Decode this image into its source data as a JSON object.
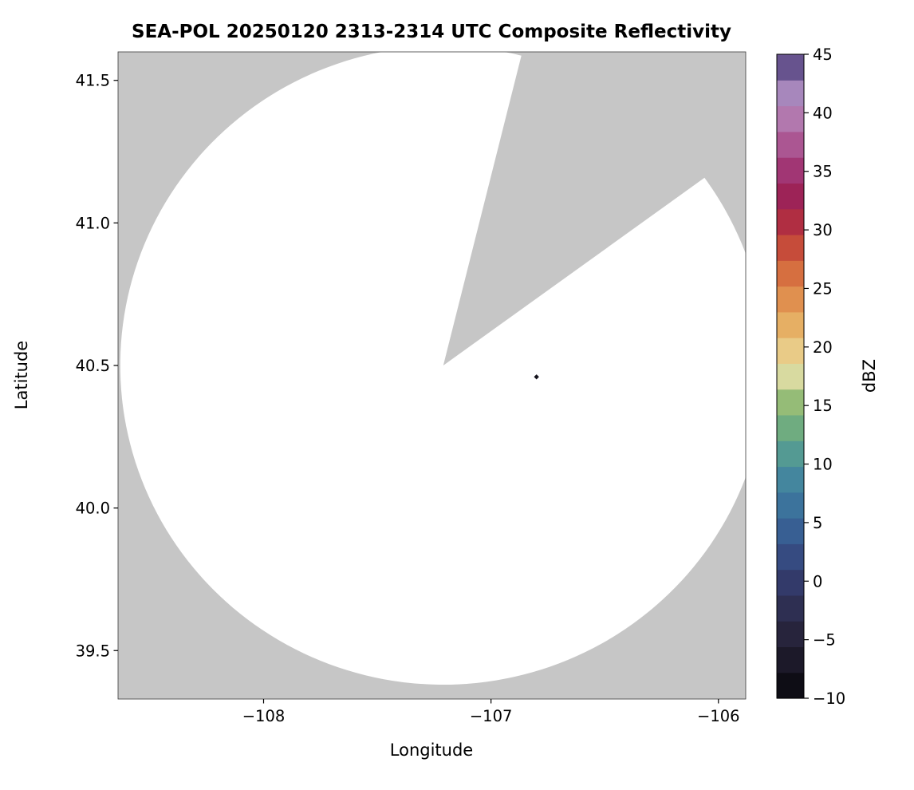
{
  "figure": {
    "background_color": "#ffffff"
  },
  "chart_data": {
    "type": "radar_ppi_composite",
    "title": "SEA-POL 20250120 2313-2314 UTC Composite Reflectivity",
    "xlabel": "Longitude",
    "ylabel": "Latitude",
    "xlim": [
      -108.64,
      -105.88
    ],
    "ylim": [
      39.33,
      41.6
    ],
    "grid": false,
    "plot_bg_color": "#c6c6c6",
    "scan_region_color": "#ffffff",
    "xticks": [
      {
        "value": -108,
        "label": "−108"
      },
      {
        "value": -107,
        "label": "−107"
      },
      {
        "value": -106,
        "label": "−106"
      }
    ],
    "yticks": [
      {
        "value": 39.5,
        "label": "39.5"
      },
      {
        "value": 40.0,
        "label": "40.0"
      },
      {
        "value": 40.5,
        "label": "40.5"
      },
      {
        "value": 41.0,
        "label": "41.0"
      },
      {
        "value": 41.5,
        "label": "41.5"
      }
    ],
    "radar_coverage": {
      "center_lon": -107.21,
      "center_lat": 40.5,
      "radius_lon_deg": 1.42,
      "radius_lat_deg": 1.12,
      "missing_sector_azimuth_deg": [
        14,
        54
      ]
    },
    "echoes": [
      {
        "lon": -106.8,
        "lat": 40.46,
        "dbz": -9,
        "color": "#14121c"
      }
    ],
    "colorbar": {
      "label": "dBZ",
      "min": -10,
      "max": 45,
      "levels": 25,
      "position": "right",
      "ticks": [
        {
          "value": -10,
          "label": "−10"
        },
        {
          "value": -5,
          "label": "−5"
        },
        {
          "value": 0,
          "label": "0"
        },
        {
          "value": 5,
          "label": "5"
        },
        {
          "value": 10,
          "label": "10"
        },
        {
          "value": 15,
          "label": "15"
        },
        {
          "value": 20,
          "label": "20"
        },
        {
          "value": 25,
          "label": "25"
        },
        {
          "value": 30,
          "label": "30"
        },
        {
          "value": 35,
          "label": "35"
        },
        {
          "value": 40,
          "label": "40"
        },
        {
          "value": 45,
          "label": "45"
        }
      ],
      "stops": [
        {
          "value": -10.0,
          "color": "#050508"
        },
        {
          "value": -8.0,
          "color": "#151320"
        },
        {
          "value": -6.0,
          "color": "#1f1c2e"
        },
        {
          "value": -4.0,
          "color": "#292741"
        },
        {
          "value": -2.0,
          "color": "#2f3055"
        },
        {
          "value": 0.0,
          "color": "#333a6b"
        },
        {
          "value": 2.0,
          "color": "#364a80"
        },
        {
          "value": 4.0,
          "color": "#385c91"
        },
        {
          "value": 6.0,
          "color": "#3a6e9b"
        },
        {
          "value": 8.0,
          "color": "#4080a0"
        },
        {
          "value": 10.0,
          "color": "#4b929b"
        },
        {
          "value": 12.0,
          "color": "#5fa489"
        },
        {
          "value": 14.0,
          "color": "#7cb378"
        },
        {
          "value": 16.0,
          "color": "#a3c177"
        },
        {
          "value": 17.5,
          "color": "#d8daa0"
        },
        {
          "value": 19.0,
          "color": "#e9d494"
        },
        {
          "value": 21.0,
          "color": "#e8bb6e"
        },
        {
          "value": 23.0,
          "color": "#e4a058"
        },
        {
          "value": 25.0,
          "color": "#dd8347"
        },
        {
          "value": 27.0,
          "color": "#d2643c"
        },
        {
          "value": 29.0,
          "color": "#c24439"
        },
        {
          "value": 31.0,
          "color": "#ad2a44"
        },
        {
          "value": 33.0,
          "color": "#9c2358"
        },
        {
          "value": 35.0,
          "color": "#a03573"
        },
        {
          "value": 37.0,
          "color": "#aa518e"
        },
        {
          "value": 39.0,
          "color": "#b271a8"
        },
        {
          "value": 41.0,
          "color": "#b28ec0"
        },
        {
          "value": 42.5,
          "color": "#9a7fb8"
        },
        {
          "value": 43.5,
          "color": "#77619e"
        },
        {
          "value": 44.5,
          "color": "#4f3f77"
        },
        {
          "value": 45.0,
          "color": "#241e3f"
        }
      ]
    }
  }
}
